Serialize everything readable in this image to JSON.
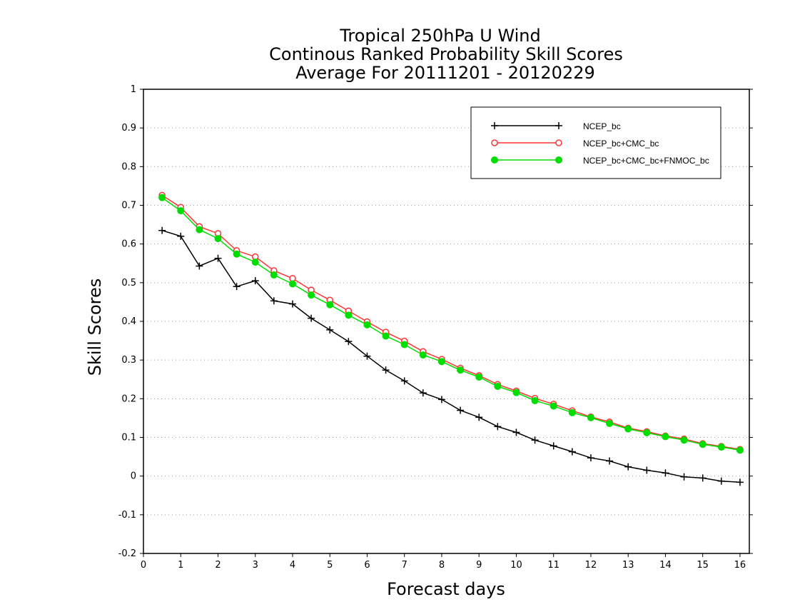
{
  "chart_data": {
    "type": "line",
    "title": [
      "Tropical 250hPa U Wind",
      "Continous Ranked Probability Skill Scores",
      "Average For 20111201 - 20120229"
    ],
    "xlabel": "Forecast days",
    "ylabel": "Skill Scores",
    "xlim": [
      0,
      16.25
    ],
    "ylim": [
      -0.2,
      1
    ],
    "xticks": [
      0,
      1,
      2,
      3,
      4,
      5,
      6,
      7,
      8,
      9,
      10,
      11,
      12,
      13,
      14,
      15,
      16
    ],
    "yticks": [
      -0.2,
      -0.1,
      0,
      0.1,
      0.2,
      0.3,
      0.4,
      0.5,
      0.6,
      0.7,
      0.8,
      0.9,
      1
    ],
    "ytick_labels": [
      "-0.2",
      "-0.1",
      "0",
      "0.1",
      "0.2",
      "0.3",
      "0.4",
      "0.5",
      "0.6",
      "0.7",
      "0.8",
      "0.9",
      "1"
    ],
    "grid": "horizontal-dotted",
    "legend_position": "top-right",
    "x": [
      0.5,
      1,
      1.5,
      2,
      2.5,
      3,
      3.5,
      4,
      4.5,
      5,
      5.5,
      6,
      6.5,
      7,
      7.5,
      8,
      8.5,
      9,
      9.5,
      10,
      10.5,
      11,
      11.5,
      12,
      12.5,
      13,
      13.5,
      14,
      14.5,
      15,
      15.5,
      16
    ],
    "series": [
      {
        "name": "NCEP_bc",
        "color": "#000000",
        "marker": "plus",
        "values": [
          0.635,
          0.62,
          0.543,
          0.563,
          0.49,
          0.505,
          0.453,
          0.445,
          0.408,
          0.378,
          0.348,
          0.31,
          0.274,
          0.246,
          0.215,
          0.198,
          0.17,
          0.152,
          0.128,
          0.113,
          0.093,
          0.078,
          0.063,
          0.047,
          0.039,
          0.024,
          0.015,
          0.008,
          -0.002,
          -0.005,
          -0.013,
          -0.016
        ]
      },
      {
        "name": "NCEP_bc+CMC_bc",
        "color": "#ff3333",
        "marker": "open-circle",
        "values": [
          0.726,
          0.695,
          0.645,
          0.627,
          0.583,
          0.567,
          0.531,
          0.511,
          0.481,
          0.455,
          0.427,
          0.399,
          0.372,
          0.349,
          0.322,
          0.302,
          0.279,
          0.26,
          0.237,
          0.22,
          0.201,
          0.186,
          0.169,
          0.153,
          0.14,
          0.124,
          0.115,
          0.104,
          0.096,
          0.084,
          0.077,
          0.069
        ]
      },
      {
        "name": "NCEP_bc+CMC_bc+FNMOC_bc",
        "color": "#00dd00",
        "marker": "filled-circle",
        "values": [
          0.72,
          0.686,
          0.637,
          0.614,
          0.574,
          0.553,
          0.52,
          0.497,
          0.468,
          0.443,
          0.416,
          0.391,
          0.362,
          0.34,
          0.313,
          0.296,
          0.274,
          0.256,
          0.232,
          0.216,
          0.195,
          0.181,
          0.164,
          0.151,
          0.136,
          0.122,
          0.112,
          0.102,
          0.093,
          0.082,
          0.075,
          0.067
        ]
      }
    ]
  }
}
